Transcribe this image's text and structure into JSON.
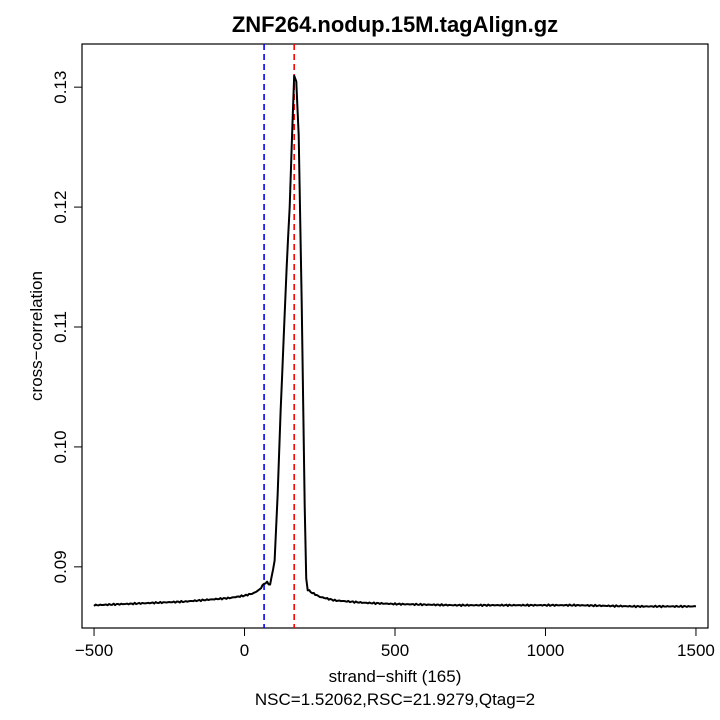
{
  "chart_data": {
    "type": "line",
    "title": "ZNF264.nodup.15M.tagAlign.gz",
    "xlabel": "strand−shift (165)",
    "ylabel": "cross−correlation",
    "subtitle": "NSC=1.52062,RSC=21.9279,Qtag=2",
    "xlim": [
      -540,
      1540
    ],
    "ylim": [
      0.0849,
      0.1336
    ],
    "x_ticks": [
      {
        "value": -500,
        "label": "−500"
      },
      {
        "value": 0,
        "label": "0"
      },
      {
        "value": 500,
        "label": "500"
      },
      {
        "value": 1000,
        "label": "1000"
      },
      {
        "value": 1500,
        "label": "1500"
      }
    ],
    "y_ticks": [
      {
        "value": 0.09,
        "label": "0.09"
      },
      {
        "value": 0.1,
        "label": "0.10"
      },
      {
        "value": 0.11,
        "label": "0.11"
      },
      {
        "value": 0.12,
        "label": "0.12"
      },
      {
        "value": 0.13,
        "label": "0.13"
      }
    ],
    "grid": false,
    "series": [
      {
        "color": "#000000",
        "x": [
          -500,
          -400,
          -300,
          -200,
          -100,
          -50,
          0,
          30,
          50,
          65,
          75,
          85,
          100,
          110,
          120,
          130,
          140,
          150,
          158,
          165,
          172,
          180,
          190,
          200,
          205,
          210,
          220,
          250,
          300,
          400,
          500,
          700,
          900,
          1100,
          1300,
          1500
        ],
        "y": [
          0.0868,
          0.0869,
          0.087,
          0.0871,
          0.0873,
          0.0874,
          0.0876,
          0.0878,
          0.0881,
          0.0886,
          0.0887,
          0.0885,
          0.0905,
          0.096,
          0.103,
          0.109,
          0.115,
          0.12,
          0.126,
          0.131,
          0.1305,
          0.126,
          0.112,
          0.095,
          0.089,
          0.0881,
          0.0879,
          0.0875,
          0.0872,
          0.087,
          0.0869,
          0.0868,
          0.0868,
          0.0868,
          0.0867,
          0.0867
        ]
      }
    ],
    "vlines": [
      {
        "x": 65,
        "color": "#0000ff",
        "style": "dashed"
      },
      {
        "x": 165,
        "color": "#ff0000",
        "style": "dashed"
      }
    ]
  }
}
